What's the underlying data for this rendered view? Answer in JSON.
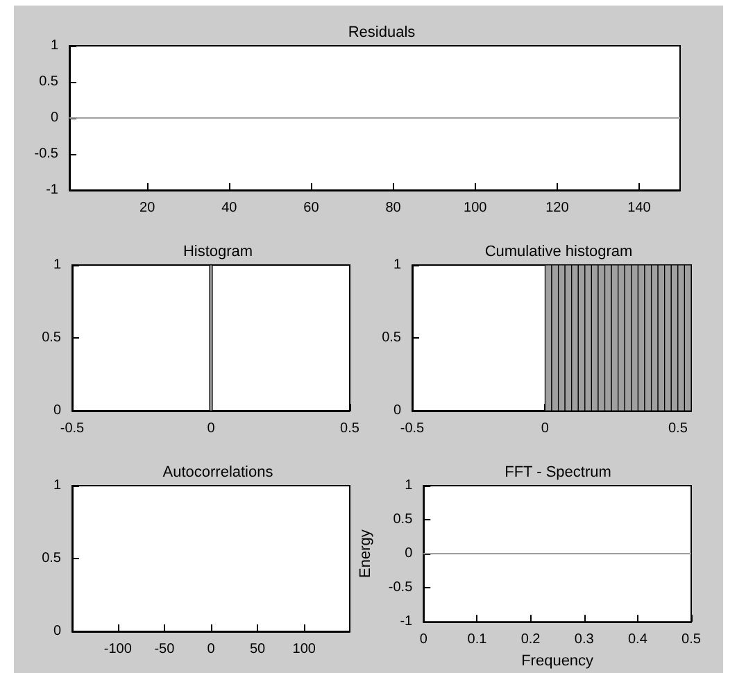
{
  "chart_data": [
    {
      "type": "line",
      "title": "Residuals",
      "x": [
        1,
        150
      ],
      "values": [
        0,
        0
      ],
      "color": "#a0a0a0",
      "marker": "none",
      "xlim": [
        1,
        150
      ],
      "xticks": [
        20,
        40,
        60,
        80,
        100,
        120,
        140
      ],
      "ylim": [
        -1,
        1
      ],
      "yticks": [
        -1,
        -0.5,
        0,
        0.5,
        1
      ],
      "grid": false
    },
    {
      "type": "histogram",
      "title": "Histogram",
      "bins": [
        -0.005,
        0.005
      ],
      "values": [
        1
      ],
      "color": "#a0a0a0",
      "xlim": [
        -0.5,
        0.5
      ],
      "xticks": [
        -0.5,
        0,
        0.5
      ],
      "ylim": [
        0,
        1
      ],
      "yticks": [
        0,
        0.5,
        1
      ],
      "grid": false
    },
    {
      "type": "histogram",
      "title": "Cumulative histogram",
      "bins": [
        0,
        0.025,
        0.05,
        0.075,
        0.1,
        0.125,
        0.15,
        0.175,
        0.2,
        0.225,
        0.25,
        0.275,
        0.3,
        0.325,
        0.35,
        0.375,
        0.4,
        0.425,
        0.45,
        0.475,
        0.5,
        0.525,
        0.55
      ],
      "values": [
        1,
        1,
        1,
        1,
        1,
        1,
        1,
        1,
        1,
        1,
        1,
        1,
        1,
        1,
        1,
        1,
        1,
        1,
        1,
        1,
        1,
        1
      ],
      "color": "#a0a0a0",
      "xlim": [
        -0.5,
        0.55
      ],
      "xticks": [
        -0.5,
        0,
        0.5
      ],
      "ylim": [
        0,
        1
      ],
      "yticks": [
        0,
        0.5,
        1
      ],
      "grid": false
    },
    {
      "type": "line",
      "title": "Autocorrelations",
      "xlim": [
        -149,
        149
      ],
      "xticks": [
        -100,
        -50,
        0,
        50,
        100
      ],
      "ylim": [
        0,
        1
      ],
      "yticks": [
        0,
        0.5,
        1
      ],
      "grid": false
    },
    {
      "type": "line",
      "title": "FFT - Spectrum",
      "xlabel": "Frequency",
      "ylabel": "Energy",
      "x": [
        0,
        0.5
      ],
      "values": [
        0,
        0
      ],
      "color": "#a0a0a0",
      "marker": "none",
      "xlim": [
        0,
        0.5
      ],
      "xticks": [
        0,
        0.1,
        0.2,
        0.3,
        0.4,
        0.5
      ],
      "ylim": [
        -1,
        1
      ],
      "yticks": [
        -1,
        -0.5,
        0,
        0.5,
        1
      ],
      "grid": false
    }
  ]
}
